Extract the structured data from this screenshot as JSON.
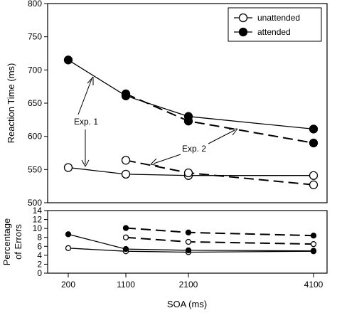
{
  "chart_data": [
    {
      "type": "line",
      "x": [
        200,
        1100,
        2100,
        4100
      ],
      "xticks": [
        "200",
        "1100",
        "2100",
        "4100"
      ],
      "xlabel": "SOA (ms)",
      "ylabel": "Reaction Time (ms)",
      "ylim": [
        500,
        800
      ],
      "yticks": [
        "500",
        "550",
        "600",
        "650",
        "700",
        "750",
        "800"
      ],
      "grid": false,
      "legend_position": "top-right",
      "series": [
        {
          "name": "unattended",
          "experiment": "Exp. 1",
          "style": "solid",
          "marker": "open",
          "x": [
            200,
            1100,
            2100,
            4100
          ],
          "y": [
            553,
            543,
            541,
            541
          ]
        },
        {
          "name": "attended",
          "experiment": "Exp. 1",
          "style": "solid",
          "marker": "filled",
          "x": [
            200,
            1100,
            2100,
            4100
          ],
          "y": [
            715,
            661,
            630,
            611
          ]
        },
        {
          "name": "unattended",
          "experiment": "Exp. 2",
          "style": "dashed",
          "marker": "open",
          "x": [
            1100,
            2100,
            4100
          ],
          "y": [
            564,
            545,
            527
          ]
        },
        {
          "name": "attended",
          "experiment": "Exp. 2",
          "style": "dashed",
          "marker": "filled",
          "x": [
            1100,
            2100,
            4100
          ],
          "y": [
            664,
            623,
            590
          ]
        }
      ],
      "annotations": [
        {
          "text": "Exp. 1"
        },
        {
          "text": "Exp. 2"
        }
      ]
    },
    {
      "type": "line",
      "x": [
        200,
        1100,
        2100,
        4100
      ],
      "ylabel_lines": [
        "Percentage",
        "of Errors"
      ],
      "ylim": [
        0,
        14
      ],
      "yticks": [
        "0",
        "2",
        "4",
        "6",
        "8",
        "10",
        "12",
        "14"
      ],
      "grid": false,
      "series": [
        {
          "name": "unattended",
          "experiment": "Exp. 1",
          "style": "solid",
          "marker": "open",
          "x": [
            200,
            1100,
            2100,
            4100
          ],
          "y": [
            5.6,
            4.9,
            4.7,
            4.9
          ]
        },
        {
          "name": "attended",
          "experiment": "Exp. 1",
          "style": "solid",
          "marker": "filled",
          "x": [
            200,
            1100,
            2100,
            4100
          ],
          "y": [
            8.7,
            5.4,
            5.1,
            5.0
          ]
        },
        {
          "name": "unattended",
          "experiment": "Exp. 2",
          "style": "dashed",
          "marker": "open",
          "x": [
            1100,
            2100,
            4100
          ],
          "y": [
            8.0,
            7.0,
            6.5
          ]
        },
        {
          "name": "attended",
          "experiment": "Exp. 2",
          "style": "dashed",
          "marker": "filled",
          "x": [
            1100,
            2100,
            4100
          ],
          "y": [
            10.1,
            9.1,
            8.4
          ]
        }
      ]
    }
  ]
}
